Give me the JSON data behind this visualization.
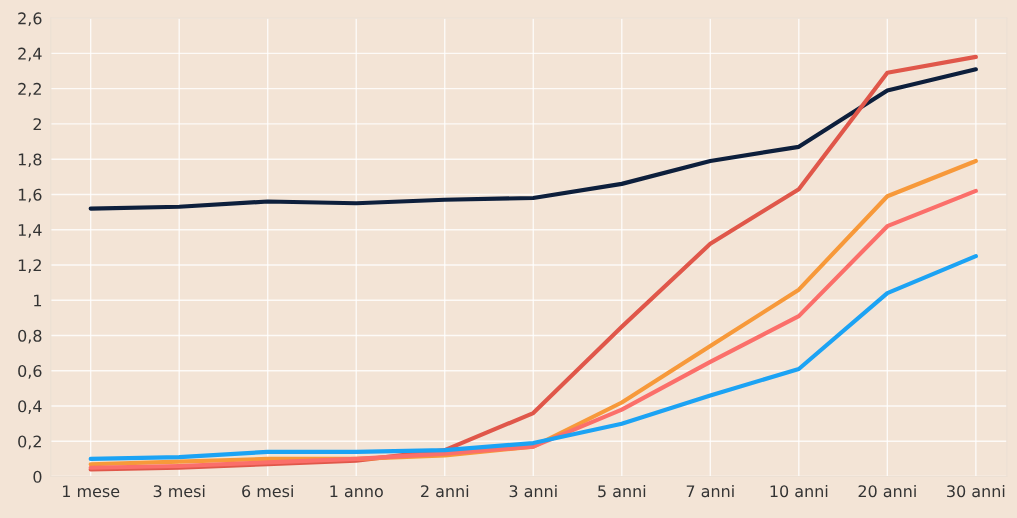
{
  "chart_data": {
    "type": "line",
    "categories": [
      "1 mese",
      "3 mesi",
      "6 mesi",
      "1 anno",
      "2 anni",
      "3 anni",
      "5 anni",
      "7 anni",
      "10 anni",
      "20 anni",
      "30 anni"
    ],
    "series": [
      {
        "color": "#0d1f3c",
        "values": [
          1.52,
          1.53,
          1.56,
          1.55,
          1.57,
          1.58,
          1.66,
          1.79,
          1.87,
          2.19,
          2.31
        ]
      },
      {
        "color": "#e0574a",
        "values": [
          0.04,
          0.05,
          0.07,
          0.09,
          0.15,
          0.36,
          0.85,
          1.32,
          1.63,
          2.29,
          2.38
        ]
      },
      {
        "color": "#f7993a",
        "values": [
          0.07,
          0.085,
          0.1,
          0.1,
          0.12,
          0.17,
          0.42,
          0.74,
          1.06,
          1.59,
          1.79
        ]
      },
      {
        "color": "#fb6f6a",
        "values": [
          0.05,
          0.06,
          0.08,
          0.1,
          0.13,
          0.17,
          0.38,
          0.65,
          0.91,
          1.42,
          1.62
        ]
      },
      {
        "color": "#1ca3f4",
        "values": [
          0.1,
          0.11,
          0.14,
          0.14,
          0.15,
          0.19,
          0.3,
          0.46,
          0.61,
          1.04,
          1.25
        ]
      }
    ],
    "ylim": [
      0,
      2.6
    ],
    "yticks": [
      0,
      {
        "value": 0.2,
        "label": "0,2"
      },
      {
        "value": 0.4,
        "label": "0,4"
      },
      {
        "value": 0.6,
        "label": "0,6"
      },
      {
        "value": 0.8,
        "label": "0,8"
      },
      1,
      {
        "value": 1.2,
        "label": "1,2"
      },
      {
        "value": 1.4,
        "label": "1,4"
      },
      {
        "value": 1.6,
        "label": "1,6"
      },
      {
        "value": 1.8,
        "label": "1,8"
      },
      2,
      {
        "value": 2.2,
        "label": "2,2"
      },
      {
        "value": 2.4,
        "label": "2,4"
      },
      {
        "value": 2.6,
        "label": "2,6"
      }
    ],
    "grid": true,
    "marker": "none",
    "line_style": "solid"
  }
}
